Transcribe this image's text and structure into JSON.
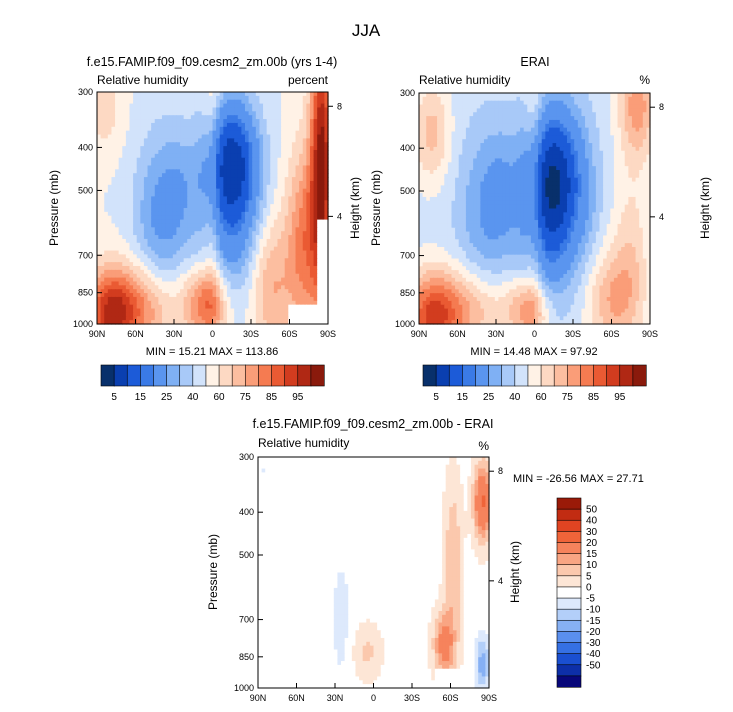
{
  "page_title": "JJA",
  "palette_rh": [
    "#08306b",
    "#0a3fb0",
    "#1c5bd8",
    "#3a7ae6",
    "#5a95ef",
    "#7fb0f4",
    "#a8c9f8",
    "#d2e3fb",
    "#fff2e6",
    "#fdd9c3",
    "#fcbea0",
    "#fa9d78",
    "#f57b51",
    "#ea5a33",
    "#d23c1f",
    "#b02814",
    "#8a1a0c"
  ],
  "palette_diff": [
    "#08077a",
    "#0d2fa8",
    "#1a4fd0",
    "#3570e3",
    "#5a8fee",
    "#86b0f4",
    "#b3cff9",
    "#dde9fc",
    "#ffffff",
    "#fde6d6",
    "#fbc8ad",
    "#f9a583",
    "#f6835c",
    "#f06439",
    "#e04422",
    "#c22c12",
    "#9a1a08"
  ],
  "chart_data": [
    {
      "id": "model",
      "type": "heatmap",
      "title": "f.e15.FAMIP.f09_f09.cesm2_zm.00b (yrs 1-4)",
      "left_label": "Relative humidity",
      "right_label": "percent",
      "ylabel": "Pressure (mb)",
      "right_axis_label": "Height (km)",
      "xticks": [
        "90N",
        "60N",
        "30N",
        "0",
        "30S",
        "60S",
        "90S"
      ],
      "yticks": [
        "300",
        "400",
        "500",
        "700",
        "850",
        "1000"
      ],
      "height_ticks": [
        "8",
        "4"
      ],
      "stats": "MIN = 15.21  MAX = 113.86",
      "colorbar_labels": [
        "5",
        "15",
        "25",
        "40",
        "60",
        "75",
        "85",
        "95"
      ],
      "xlim": [
        90,
        -90
      ],
      "ylim": [
        1000,
        300
      ],
      "log_pressure": true,
      "blank_region": {
        "lat": [
          -60,
          -90
        ],
        "p": [
          900,
          1000
        ]
      },
      "blank_right": {
        "lat": [
          -82,
          -90
        ],
        "p": [
          580,
          1000
        ]
      },
      "background_value": 60,
      "features": [
        {
          "lat": 35,
          "p": 560,
          "v": -14,
          "sl": 14,
          "sp": 0.32
        },
        {
          "lat": 50,
          "p": 600,
          "v": -6,
          "sl": 12,
          "sp": 0.3
        },
        {
          "lat": 22,
          "p": 480,
          "v": -5,
          "sl": 10,
          "sp": 0.2
        },
        {
          "lat": -15,
          "p": 430,
          "v": -40,
          "sl": 14,
          "sp": 0.22
        },
        {
          "lat": -10,
          "p": 600,
          "v": -16,
          "sl": 14,
          "sp": 0.3
        },
        {
          "lat": -30,
          "p": 620,
          "v": -6,
          "sl": 12,
          "sp": 0.3
        },
        {
          "lat": 80,
          "p": 950,
          "v": 30,
          "sl": 14,
          "sp": 0.16
        },
        {
          "lat": 85,
          "p": 330,
          "v": 8,
          "sl": 10,
          "sp": 0.15
        },
        {
          "lat": 55,
          "p": 920,
          "v": 20,
          "sl": 20,
          "sp": 0.16
        },
        {
          "lat": 5,
          "p": 900,
          "v": 25,
          "sl": 12,
          "sp": 0.13
        },
        {
          "lat": -45,
          "p": 820,
          "v": 16,
          "sl": 12,
          "sp": 0.25
        },
        {
          "lat": -72,
          "p": 650,
          "v": 22,
          "sl": 10,
          "sp": 0.35
        },
        {
          "lat": -85,
          "p": 420,
          "v": 40,
          "sl": 6,
          "sp": 0.5
        },
        {
          "lat": 0,
          "p": 480,
          "v": 10,
          "sl": 5,
          "sp": 0.6
        }
      ]
    },
    {
      "id": "obs",
      "type": "heatmap",
      "title": "ERAI",
      "left_label": "Relative humidity",
      "right_label": "%",
      "ylabel": "Pressure (mb)",
      "right_axis_label": "Height (km)",
      "xticks": [
        "90N",
        "60N",
        "30N",
        "0",
        "30S",
        "60S",
        "90S"
      ],
      "yticks": [
        "300",
        "400",
        "500",
        "700",
        "850",
        "1000"
      ],
      "height_ticks": [
        "8",
        "4"
      ],
      "stats": "MIN = 14.48  MAX = 97.92",
      "colorbar_labels": [
        "5",
        "15",
        "25",
        "40",
        "60",
        "75",
        "85",
        "95"
      ],
      "xlim": [
        90,
        -90
      ],
      "ylim": [
        1000,
        300
      ],
      "log_pressure": true,
      "background_value": 58,
      "features": [
        {
          "lat": 40,
          "p": 560,
          "v": -12,
          "sl": 15,
          "sp": 0.32
        },
        {
          "lat": 25,
          "p": 500,
          "v": -8,
          "sl": 10,
          "sp": 0.25
        },
        {
          "lat": -15,
          "p": 470,
          "v": -44,
          "sl": 15,
          "sp": 0.26
        },
        {
          "lat": -10,
          "p": 650,
          "v": -14,
          "sl": 14,
          "sp": 0.3
        },
        {
          "lat": -40,
          "p": 550,
          "v": -5,
          "sl": 10,
          "sp": 0.3
        },
        {
          "lat": 80,
          "p": 960,
          "v": 30,
          "sl": 15,
          "sp": 0.16
        },
        {
          "lat": 80,
          "p": 370,
          "v": 14,
          "sl": 10,
          "sp": 0.18
        },
        {
          "lat": 50,
          "p": 930,
          "v": 16,
          "sl": 20,
          "sp": 0.15
        },
        {
          "lat": 5,
          "p": 930,
          "v": 20,
          "sl": 12,
          "sp": 0.12
        },
        {
          "lat": -60,
          "p": 880,
          "v": 16,
          "sl": 14,
          "sp": 0.18
        },
        {
          "lat": -80,
          "p": 320,
          "v": 20,
          "sl": 10,
          "sp": 0.2
        },
        {
          "lat": -75,
          "p": 700,
          "v": 10,
          "sl": 10,
          "sp": 0.3
        },
        {
          "lat": 0,
          "p": 480,
          "v": 10,
          "sl": 5,
          "sp": 0.6
        }
      ]
    },
    {
      "id": "diff",
      "type": "heatmap",
      "title": "f.e15.FAMIP.f09_f09.cesm2_zm.00b - ERAI",
      "left_label": "Relative humidity",
      "right_label": "%",
      "ylabel": "Pressure (mb)",
      "right_axis_label": "Height (km)",
      "xticks": [
        "90N",
        "60N",
        "30N",
        "0",
        "30S",
        "60S",
        "90S"
      ],
      "yticks": [
        "300",
        "400",
        "500",
        "700",
        "850",
        "1000"
      ],
      "height_ticks": [
        "8",
        "4"
      ],
      "stats": "MIN = -26.56  MAX =  27.71",
      "colorbar_labels": [
        "50",
        "40",
        "30",
        "20",
        "15",
        "10",
        "5",
        "0",
        "-5",
        "-10",
        "-15",
        "-20",
        "-30",
        "-40",
        "-50"
      ],
      "xlim": [
        90,
        -90
      ],
      "ylim": [
        1000,
        300
      ],
      "log_pressure": true,
      "blank_region": {
        "lat": [
          -48,
          -80
        ],
        "p": [
          900,
          1000
        ]
      },
      "background_value": 3,
      "features": [
        {
          "lat": -55,
          "p": 800,
          "v": 20,
          "sl": 6,
          "sp": 0.12
        },
        {
          "lat": -62,
          "p": 520,
          "v": 12,
          "sl": 5,
          "sp": 0.3
        },
        {
          "lat": -85,
          "p": 380,
          "v": 28,
          "sl": 5,
          "sp": 0.14
        },
        {
          "lat": -85,
          "p": 880,
          "v": -16,
          "sl": 4,
          "sp": 0.1
        },
        {
          "lat": 25,
          "p": 700,
          "v": -5,
          "sl": 6,
          "sp": 0.25
        },
        {
          "lat": 70,
          "p": 680,
          "v": -3,
          "sl": 10,
          "sp": 0.3
        },
        {
          "lat": 0,
          "p": 420,
          "v": -3,
          "sl": 3,
          "sp": 0.05
        },
        {
          "lat": 5,
          "p": 830,
          "v": 8,
          "sl": 8,
          "sp": 0.1
        },
        {
          "lat": 85,
          "p": 320,
          "v": -3,
          "sl": 8,
          "sp": 0.06
        }
      ]
    }
  ]
}
